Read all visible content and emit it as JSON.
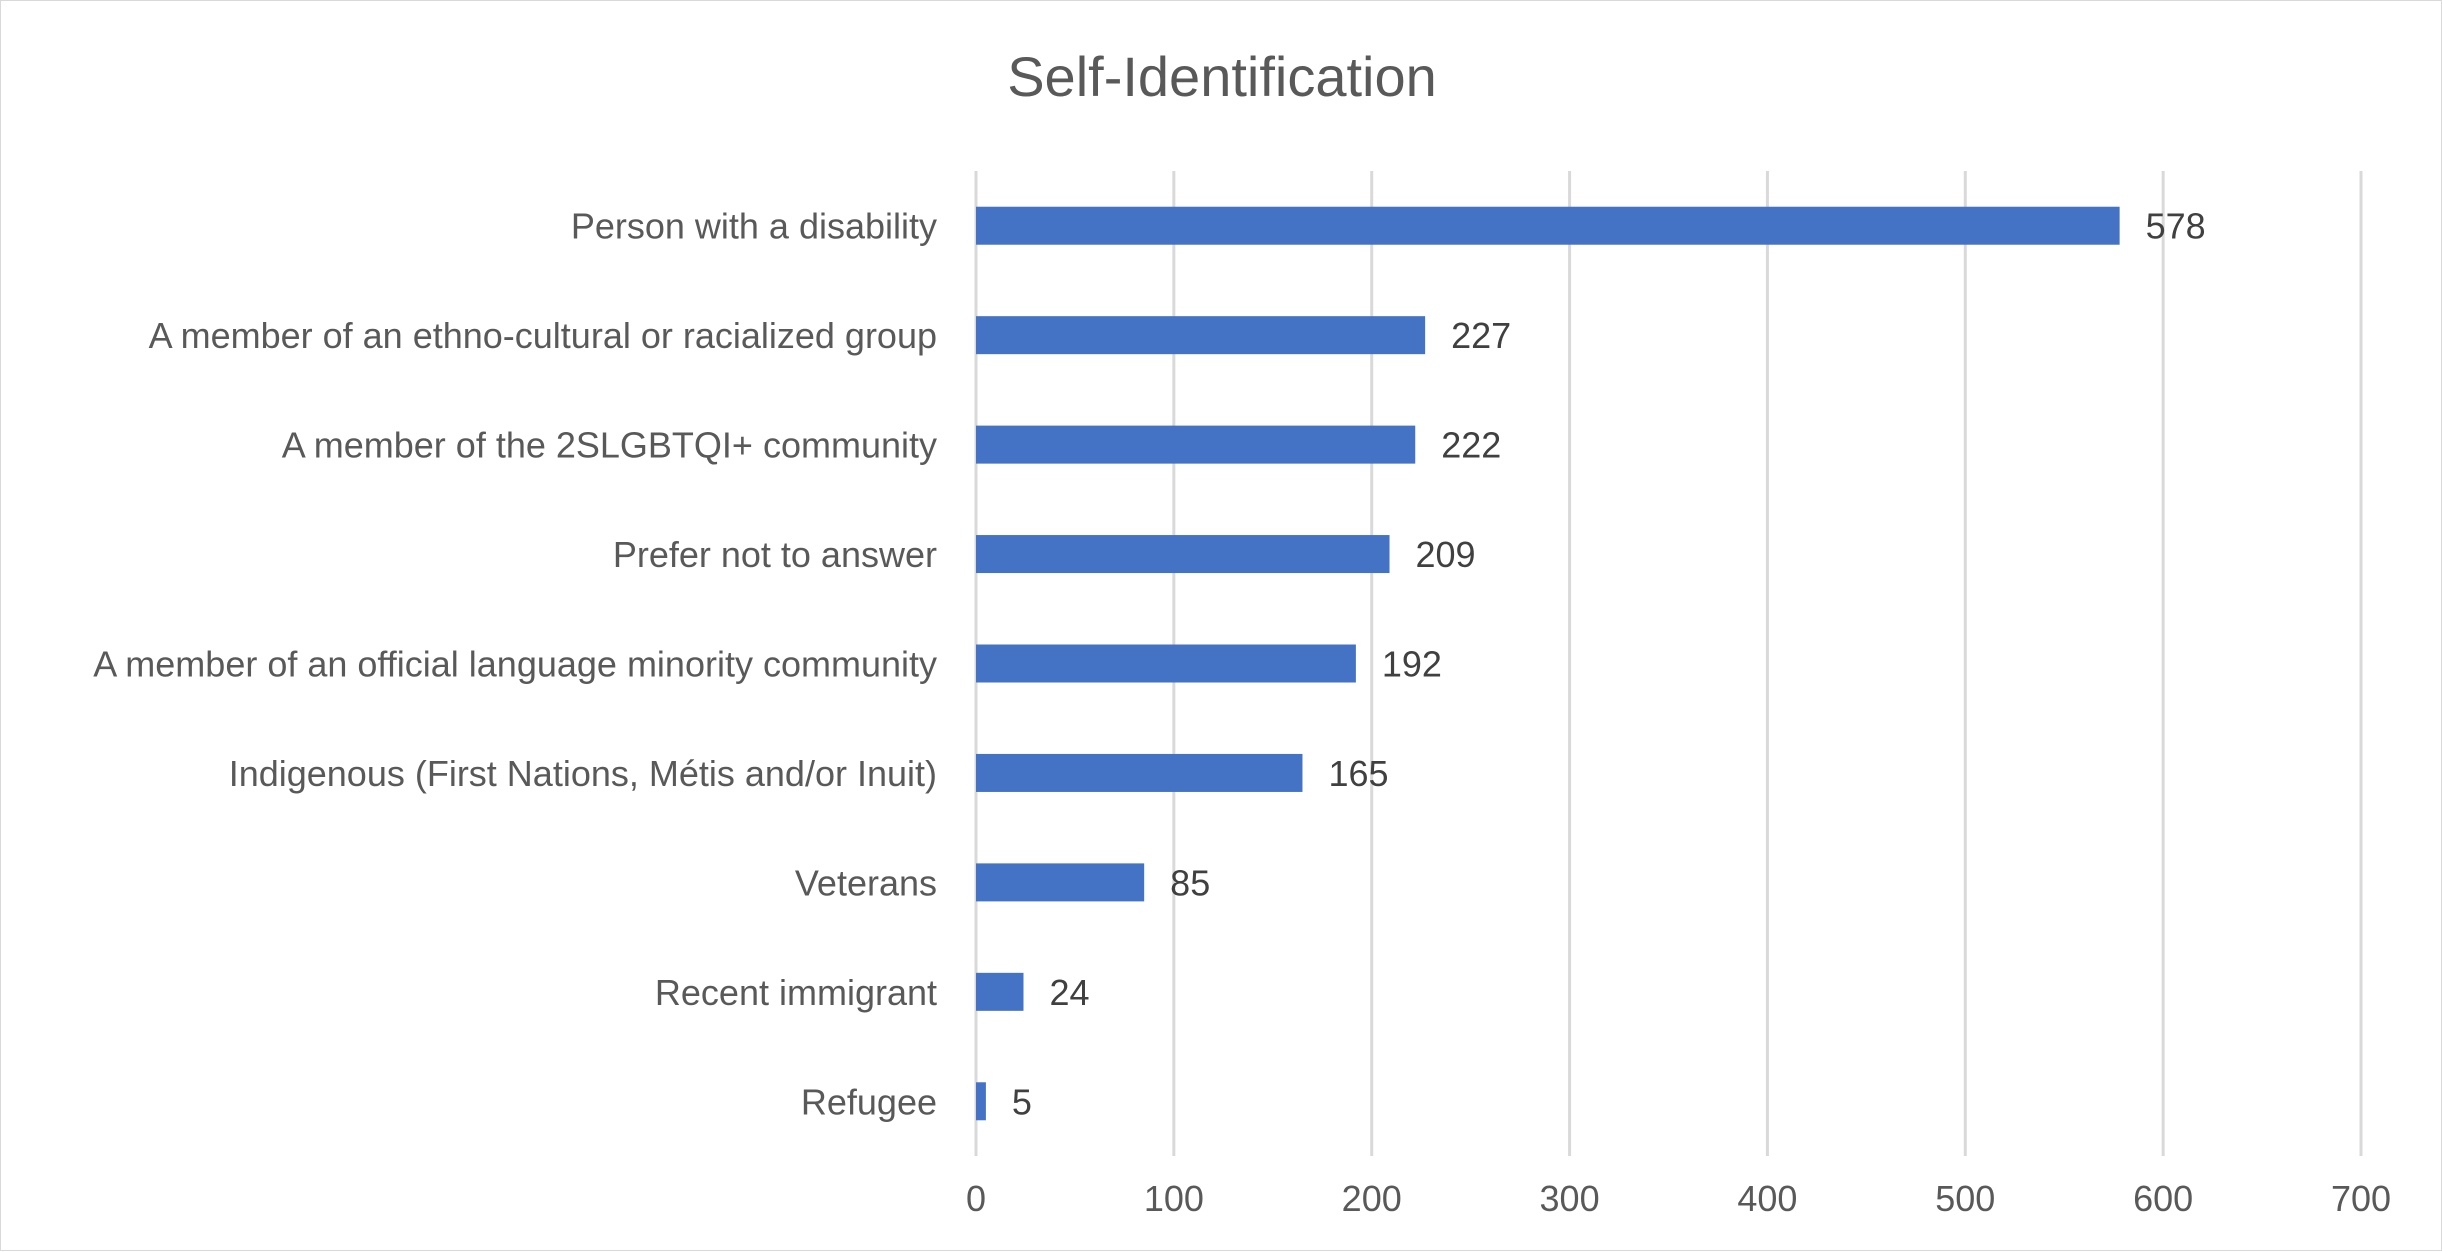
{
  "chart_data": {
    "type": "bar",
    "orientation": "horizontal",
    "title": "Self-Identification",
    "categories": [
      "Person with a disability",
      "A member of an ethno-cultural or racialized group",
      "A member of the 2SLGBTQI+ community",
      "Prefer not to answer",
      "A member of an official language minority community",
      "Indigenous (First Nations, Métis and/or Inuit)",
      "Veterans",
      "Recent immigrant",
      "Refugee"
    ],
    "values": [
      578,
      227,
      222,
      209,
      192,
      165,
      85,
      24,
      5
    ],
    "data_labels": [
      "578",
      "227",
      "222",
      "209",
      "192",
      "165",
      "85",
      "24",
      "5"
    ],
    "xlim": [
      0,
      700
    ],
    "xticks": [
      "0",
      "100",
      "200",
      "300",
      "400",
      "500",
      "600",
      "700"
    ],
    "grid": "vertical",
    "legend": "none",
    "colors": {
      "bar": "#4472C4",
      "grid": "#d9d9d9",
      "text": "#595959"
    }
  }
}
